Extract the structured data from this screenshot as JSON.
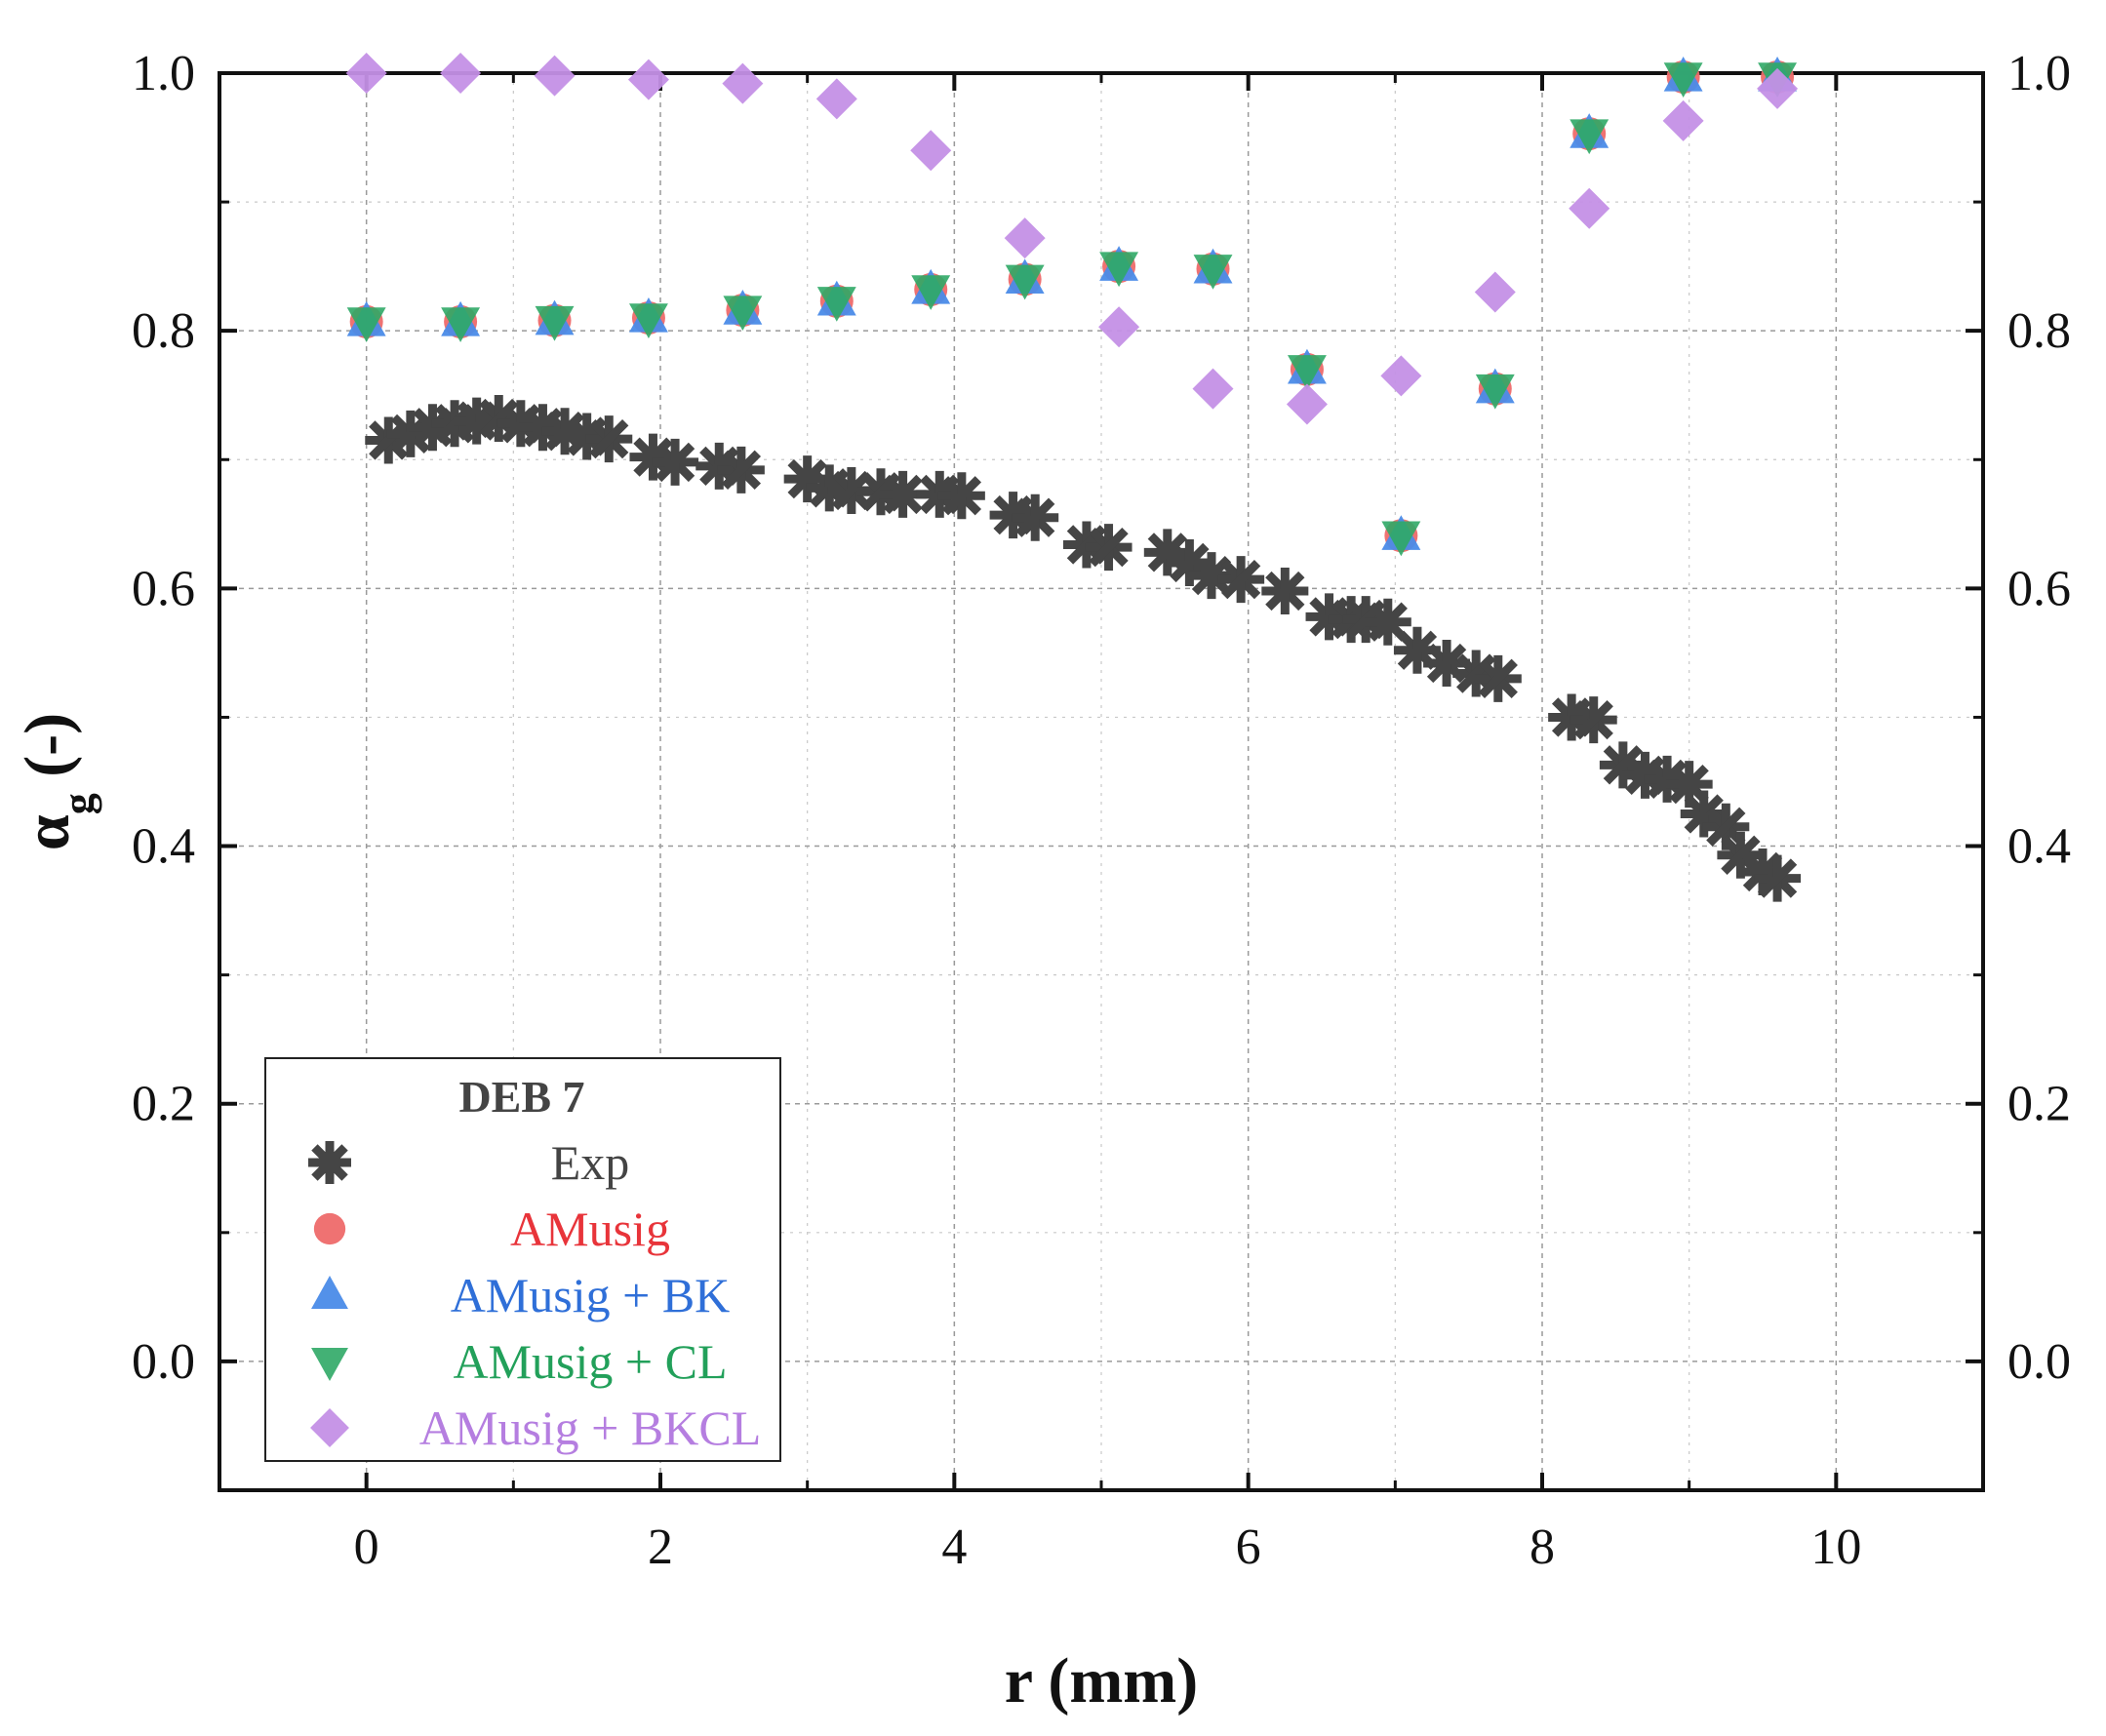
{
  "chart_data": {
    "type": "scatter",
    "title": "",
    "xlabel": "r (mm)",
    "ylabel_main": "α",
    "ylabel_sub": "g",
    "ylabel_tail": " (-)",
    "xlim": [
      -1,
      11
    ],
    "ylim": [
      -0.1,
      1.0
    ],
    "xticks": [
      0,
      2,
      4,
      6,
      8,
      10
    ],
    "xtick_labels": [
      "0",
      "2",
      "4",
      "6",
      "8",
      "10"
    ],
    "yticks": [
      0.0,
      0.2,
      0.4,
      0.6,
      0.8,
      1.0
    ],
    "ytick_labels": [
      "0.0",
      "0.2",
      "0.4",
      "0.6",
      "0.8",
      "1.0"
    ],
    "right_axis_mirror": true,
    "grid": true,
    "legend_title": "DEB 7",
    "legend_position": "bottom-left",
    "series": [
      {
        "name": "Exp",
        "marker": "asterisk",
        "color": "#454545",
        "x": [
          0.15,
          0.3,
          0.45,
          0.6,
          0.75,
          0.9,
          1.05,
          1.2,
          1.35,
          1.5,
          1.65,
          1.95,
          2.1,
          2.4,
          2.55,
          3.0,
          3.15,
          3.3,
          3.5,
          3.65,
          3.9,
          4.05,
          4.4,
          4.55,
          4.9,
          5.05,
          5.45,
          5.6,
          5.75,
          5.95,
          6.25,
          6.55,
          6.7,
          6.8,
          6.95,
          7.15,
          7.35,
          7.55,
          7.7,
          8.2,
          8.35,
          8.55,
          8.7,
          8.85,
          9.0,
          9.1,
          9.25,
          9.35,
          9.5,
          9.6
        ],
        "y": [
          0.715,
          0.72,
          0.725,
          0.728,
          0.73,
          0.732,
          0.728,
          0.725,
          0.722,
          0.718,
          0.716,
          0.702,
          0.698,
          0.695,
          0.692,
          0.685,
          0.678,
          0.676,
          0.675,
          0.673,
          0.673,
          0.672,
          0.657,
          0.655,
          0.634,
          0.632,
          0.628,
          0.62,
          0.61,
          0.607,
          0.598,
          0.578,
          0.576,
          0.576,
          0.574,
          0.552,
          0.542,
          0.534,
          0.53,
          0.5,
          0.498,
          0.463,
          0.455,
          0.452,
          0.448,
          0.425,
          0.415,
          0.393,
          0.38,
          0.375
        ]
      },
      {
        "name": "AMusig",
        "marker": "circle",
        "color": "#ee6a6a",
        "x": [
          0,
          0.64,
          1.28,
          1.92,
          2.56,
          3.2,
          3.84,
          4.48,
          5.12,
          5.76,
          6.4,
          7.04,
          7.68,
          8.32,
          8.96,
          9.6
        ],
        "y": [
          0.807,
          0.807,
          0.808,
          0.81,
          0.816,
          0.823,
          0.832,
          0.84,
          0.85,
          0.848,
          0.77,
          0.641,
          0.755,
          0.953,
          0.997,
          0.997
        ]
      },
      {
        "name": "AMusig + BK",
        "marker": "triangle-up",
        "color": "#4a8be8",
        "x": [
          0,
          0.64,
          1.28,
          1.92,
          2.56,
          3.2,
          3.84,
          4.48,
          5.12,
          5.76,
          6.4,
          7.04,
          7.68,
          8.32,
          8.96,
          9.6
        ],
        "y": [
          0.807,
          0.807,
          0.808,
          0.81,
          0.816,
          0.823,
          0.832,
          0.84,
          0.85,
          0.848,
          0.77,
          0.641,
          0.755,
          0.953,
          0.997,
          0.997
        ]
      },
      {
        "name": "AMusig + CL",
        "marker": "triangle-down",
        "color": "#2fa866",
        "x": [
          0,
          0.64,
          1.28,
          1.92,
          2.56,
          3.2,
          3.84,
          4.48,
          5.12,
          5.76,
          6.4,
          7.04,
          7.68,
          8.32,
          8.96,
          9.6
        ],
        "y": [
          0.807,
          0.807,
          0.808,
          0.81,
          0.816,
          0.823,
          0.832,
          0.84,
          0.85,
          0.848,
          0.77,
          0.641,
          0.755,
          0.953,
          0.997,
          0.997
        ]
      },
      {
        "name": "AMusig + BKCL",
        "marker": "diamond",
        "color": "#c490e6",
        "x": [
          0,
          0.64,
          1.28,
          1.92,
          2.56,
          3.2,
          3.84,
          4.48,
          5.12,
          5.76,
          6.4,
          7.04,
          7.68,
          8.32,
          8.96,
          9.6
        ],
        "y": [
          1.0,
          1.0,
          0.998,
          0.995,
          0.992,
          0.98,
          0.94,
          0.872,
          0.803,
          0.755,
          0.743,
          0.765,
          0.83,
          0.895,
          0.963,
          0.988
        ]
      }
    ]
  }
}
